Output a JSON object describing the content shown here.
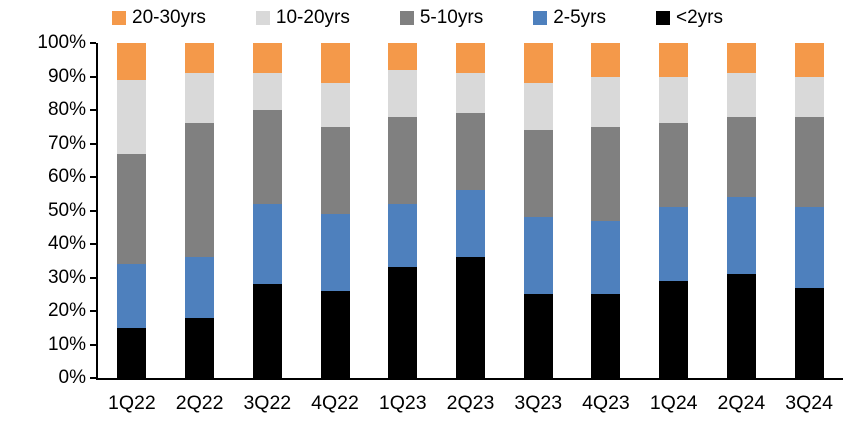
{
  "chart_data": {
    "type": "bar",
    "subtype": "stacked-100-percent",
    "title": "",
    "xlabel": "",
    "ylabel": "",
    "grid": false,
    "legend_position": "top",
    "ylim": [
      0,
      100
    ],
    "y_ticks": [
      "0%",
      "10%",
      "20%",
      "30%",
      "40%",
      "50%",
      "60%",
      "70%",
      "80%",
      "90%",
      "100%"
    ],
    "categories": [
      "1Q22",
      "2Q22",
      "3Q22",
      "4Q22",
      "1Q23",
      "2Q23",
      "3Q23",
      "4Q23",
      "1Q24",
      "2Q24",
      "3Q24"
    ],
    "series": [
      {
        "name": "<2yrs",
        "color": "#000000",
        "values": [
          15,
          18,
          28,
          26,
          33,
          36,
          25,
          25,
          29,
          31,
          27
        ]
      },
      {
        "name": "2-5yrs",
        "color": "#4E80BD",
        "values": [
          19,
          18,
          24,
          23,
          19,
          20,
          23,
          22,
          22,
          23,
          24
        ]
      },
      {
        "name": "5-10yrs",
        "color": "#808080",
        "values": [
          33,
          40,
          28,
          26,
          26,
          23,
          26,
          28,
          25,
          24,
          27
        ]
      },
      {
        "name": "10-20yrs",
        "color": "#D9D9D9",
        "values": [
          22,
          15,
          11,
          13,
          14,
          12,
          14,
          15,
          14,
          13,
          12
        ]
      },
      {
        "name": "20-30yrs",
        "color": "#F4994A",
        "values": [
          11,
          9,
          9,
          12,
          8,
          9,
          12,
          10,
          10,
          9,
          10
        ]
      }
    ],
    "legend_order": [
      "20-30yrs",
      "10-20yrs",
      "5-10yrs",
      "2-5yrs",
      "<2yrs"
    ],
    "axis_color": "#000000",
    "text_color": "#000000"
  }
}
